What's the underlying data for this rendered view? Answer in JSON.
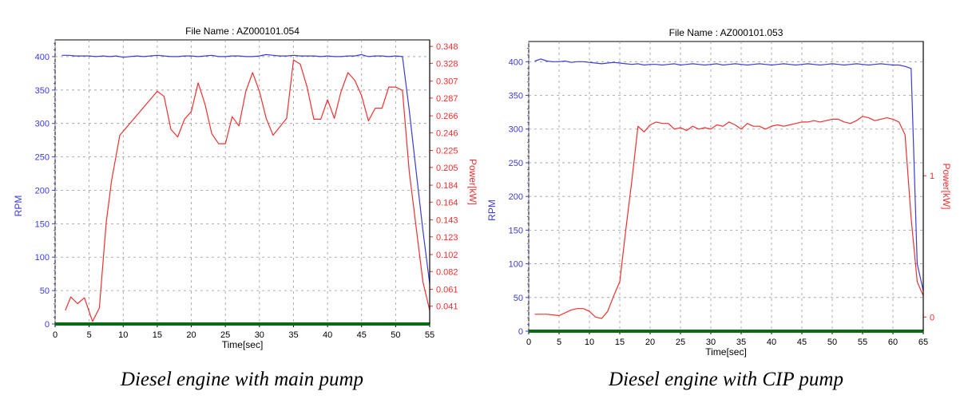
{
  "chart_data": [
    {
      "type": "line",
      "title": "File Name : AZ000101.054",
      "caption": "Diesel engine with main pump",
      "xlabel": "Time[sec]",
      "ylabel_left": "RPM",
      "ylabel_right": "Power[kW]",
      "xlim": [
        0,
        55
      ],
      "xticks": [
        "0",
        "5",
        "10",
        "15",
        "20",
        "25",
        "30",
        "35",
        "40",
        "45",
        "50",
        "55"
      ],
      "ylim_left": [
        0,
        425
      ],
      "yticks_left": [
        "0",
        "50",
        "100",
        "150",
        "200",
        "250",
        "300",
        "350",
        "400"
      ],
      "ylim_right": [
        0.02,
        0.3557
      ],
      "yticks_right": [
        "0.041",
        "0.061",
        "0.082",
        "0.102",
        "0.123",
        "0.143",
        "0.164",
        "0.184",
        "0.205",
        "0.225",
        "0.246",
        "0.266",
        "0.287",
        "0.307",
        "0.328",
        "0.348"
      ],
      "series": [
        {
          "axis": "left",
          "color": "#3b3bd6",
          "x": [
            1,
            2,
            3,
            4,
            5,
            6,
            7,
            8,
            9,
            10,
            11,
            12,
            13,
            14,
            15,
            16,
            17,
            18,
            19,
            20,
            21,
            22,
            23,
            24,
            25,
            26,
            27,
            28,
            29,
            30,
            31,
            32,
            33,
            34,
            35,
            36,
            37,
            38,
            39,
            40,
            41,
            42,
            43,
            44,
            45,
            46,
            47,
            48,
            49,
            50,
            51,
            52,
            53,
            54,
            55
          ],
          "y": [
            402,
            402,
            401,
            401,
            401,
            400,
            401,
            400,
            401,
            399,
            400,
            401,
            400,
            401,
            402,
            401,
            400,
            400,
            401,
            401,
            400,
            401,
            402,
            400,
            400,
            401,
            401,
            400,
            400,
            401,
            403,
            402,
            401,
            401,
            402,
            401,
            401,
            401,
            400,
            401,
            400,
            400,
            401,
            401,
            403,
            400,
            401,
            401,
            400,
            401,
            400,
            320,
            230,
            140,
            60
          ]
        },
        {
          "axis": "right",
          "color": "#f03030",
          "x": [
            1.5,
            2.3,
            3.3,
            4.3,
            5.5,
            6.5,
            7.5,
            8.3,
            9.5,
            15,
            16,
            17,
            18,
            19,
            20,
            21,
            22,
            23,
            24,
            25,
            26,
            27,
            28,
            29,
            30,
            31,
            32,
            33,
            34,
            35,
            36,
            37,
            38,
            39,
            40,
            41,
            42,
            43,
            44,
            45,
            46,
            47,
            48,
            49,
            50,
            51,
            52,
            54,
            55
          ],
          "y": [
            0.036,
            0.052,
            0.044,
            0.051,
            0.023,
            0.039,
            0.14,
            0.19,
            0.243,
            0.295,
            0.289,
            0.25,
            0.241,
            0.262,
            0.271,
            0.305,
            0.28,
            0.245,
            0.233,
            0.233,
            0.265,
            0.254,
            0.295,
            0.317,
            0.295,
            0.263,
            0.243,
            0.253,
            0.263,
            0.332,
            0.327,
            0.3,
            0.262,
            0.262,
            0.285,
            0.263,
            0.295,
            0.317,
            0.308,
            0.29,
            0.26,
            0.275,
            0.275,
            0.3,
            0.3,
            0.296,
            0.2,
            0.07,
            0.036
          ]
        }
      ]
    },
    {
      "type": "line",
      "title": "File Name : AZ000101.053",
      "caption": "Diesel engine with CIP pump",
      "xlabel": "Time[sec]",
      "ylabel_left": "RPM",
      "ylabel_right": "Power[kW]",
      "xlim": [
        0,
        65
      ],
      "xticks": [
        "0",
        "5",
        "10",
        "15",
        "20",
        "25",
        "30",
        "35",
        "40",
        "45",
        "50",
        "55",
        "60",
        "65"
      ],
      "ylim_left": [
        0,
        430
      ],
      "yticks_left": [
        "0",
        "50",
        "100",
        "150",
        "200",
        "250",
        "300",
        "350",
        "400"
      ],
      "ylim_right": [
        -0.1,
        1.95
      ],
      "yticks_right": [
        "0",
        "1"
      ],
      "series": [
        {
          "axis": "left",
          "color": "#3b3bd6",
          "x": [
            1,
            2,
            3,
            4,
            5,
            6,
            7,
            8,
            9,
            10,
            11,
            12,
            13,
            14,
            15,
            16,
            17,
            18,
            19,
            20,
            21,
            22,
            23,
            24,
            25,
            26,
            27,
            28,
            29,
            30,
            31,
            32,
            33,
            34,
            35,
            36,
            37,
            38,
            39,
            40,
            41,
            42,
            43,
            44,
            45,
            46,
            47,
            48,
            49,
            50,
            51,
            52,
            53,
            54,
            55,
            56,
            57,
            58,
            59,
            60,
            61,
            62,
            63,
            64,
            65
          ],
          "y": [
            401,
            404,
            401,
            400,
            400,
            401,
            399,
            400,
            400,
            399,
            398,
            397,
            398,
            399,
            398,
            397,
            396,
            397,
            395,
            396,
            396,
            395,
            396,
            397,
            395,
            396,
            397,
            396,
            395,
            396,
            397,
            395,
            396,
            397,
            396,
            395,
            396,
            397,
            396,
            395,
            396,
            397,
            396,
            395,
            396,
            397,
            396,
            395,
            396,
            397,
            396,
            395,
            396,
            397,
            396,
            395,
            396,
            397,
            396,
            395,
            395,
            393,
            390,
            100,
            60
          ]
        },
        {
          "axis": "right",
          "color": "#f03030",
          "x": [
            1,
            3,
            5,
            7,
            8,
            9,
            10,
            11,
            12,
            13,
            14,
            15,
            16,
            17,
            18,
            19,
            20,
            21,
            22,
            23,
            24,
            25,
            26,
            27,
            28,
            29,
            30,
            31,
            32,
            33,
            34,
            35,
            36,
            37,
            38,
            39,
            40,
            41,
            42,
            43,
            44,
            45,
            46,
            47,
            48,
            49,
            50,
            51,
            52,
            53,
            54,
            55,
            56,
            57,
            58,
            59,
            60,
            61,
            62,
            63,
            64,
            65
          ],
          "y": [
            0.02,
            0.02,
            0.01,
            0.05,
            0.06,
            0.06,
            0.04,
            0.0,
            -0.01,
            0.04,
            0.15,
            0.25,
            0.62,
            0.97,
            1.35,
            1.31,
            1.36,
            1.38,
            1.37,
            1.37,
            1.33,
            1.34,
            1.32,
            1.35,
            1.33,
            1.34,
            1.33,
            1.36,
            1.35,
            1.38,
            1.36,
            1.33,
            1.37,
            1.35,
            1.35,
            1.33,
            1.35,
            1.36,
            1.35,
            1.36,
            1.37,
            1.38,
            1.38,
            1.39,
            1.38,
            1.39,
            1.4,
            1.4,
            1.38,
            1.37,
            1.39,
            1.42,
            1.41,
            1.39,
            1.4,
            1.41,
            1.4,
            1.38,
            1.29,
            0.7,
            0.25,
            0.15
          ]
        }
      ]
    }
  ]
}
